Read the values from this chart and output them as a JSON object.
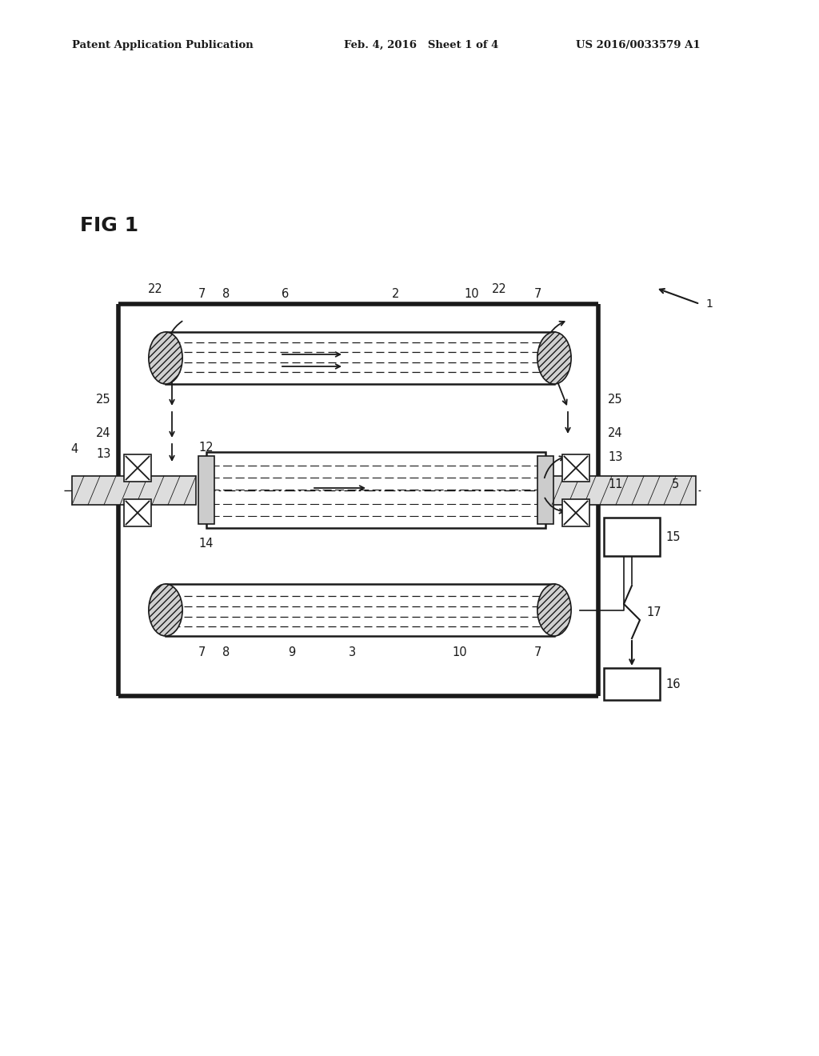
{
  "background_color": "#ffffff",
  "header_left": "Patent Application Publication",
  "header_center": "Feb. 4, 2016   Sheet 1 of 4",
  "header_right": "US 2016/0033579 A1",
  "fig_label": "FIG 1"
}
